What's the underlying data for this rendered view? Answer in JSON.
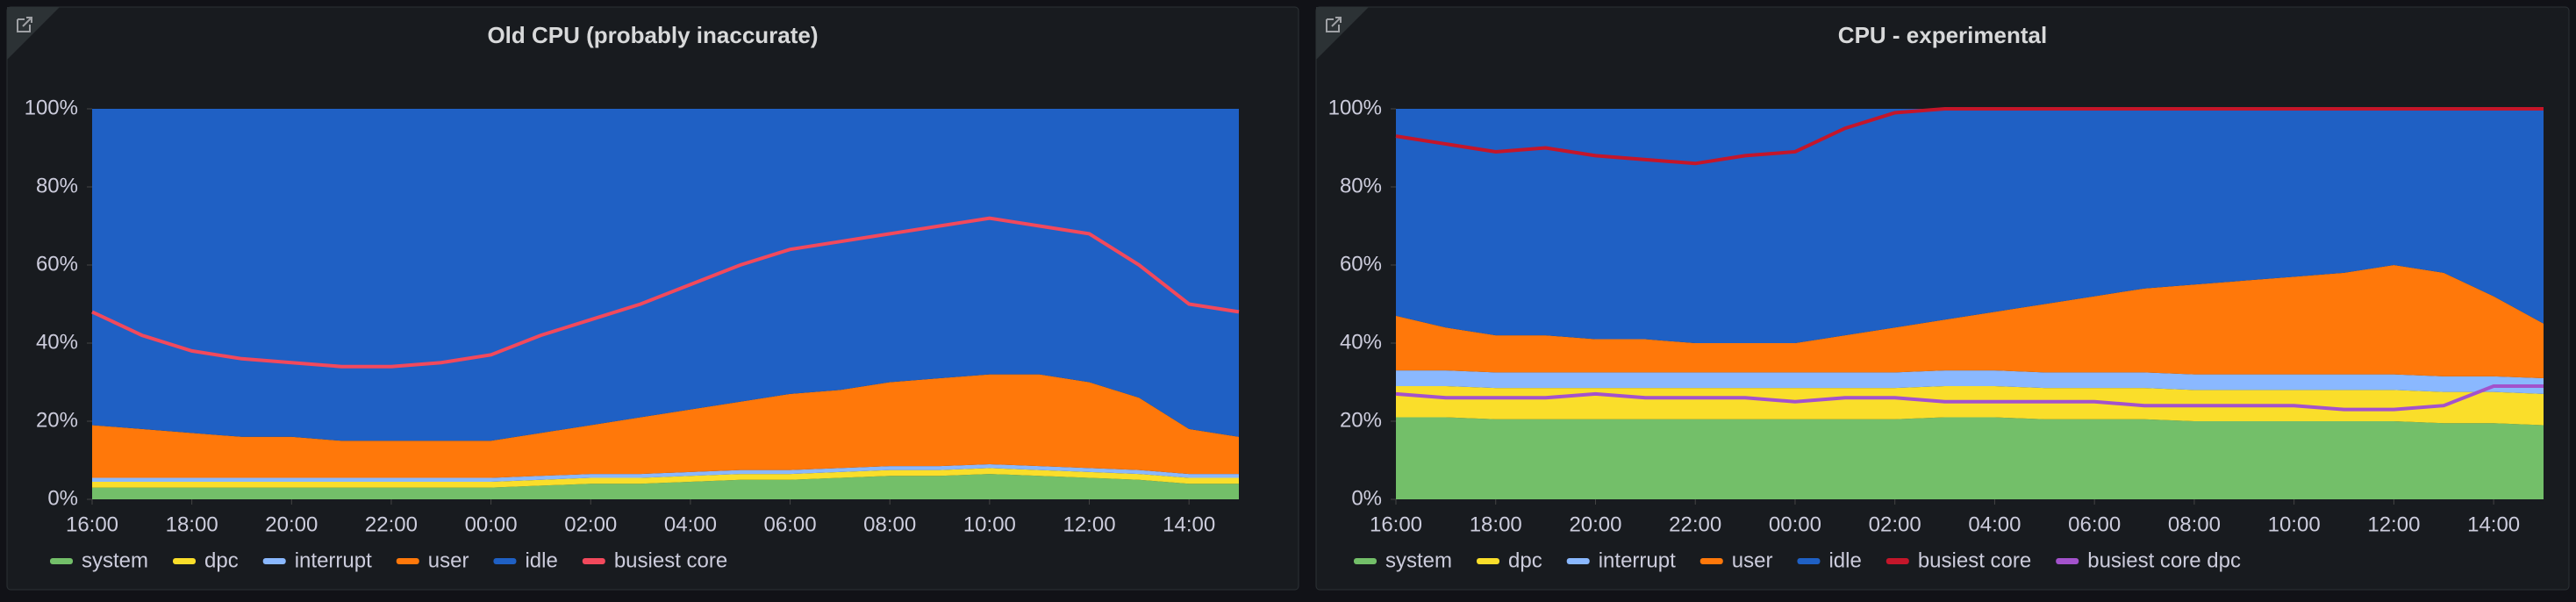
{
  "chart_data": [
    {
      "type": "area",
      "title": "Old CPU (probably inaccurate)",
      "x": [
        "16:00",
        "17:00",
        "18:00",
        "19:00",
        "20:00",
        "21:00",
        "22:00",
        "23:00",
        "00:00",
        "01:00",
        "02:00",
        "03:00",
        "04:00",
        "05:00",
        "06:00",
        "07:00",
        "08:00",
        "09:00",
        "10:00",
        "11:00",
        "12:00",
        "13:00",
        "14:00",
        "15:00"
      ],
      "xticks": [
        "16:00",
        "18:00",
        "20:00",
        "22:00",
        "00:00",
        "02:00",
        "04:00",
        "06:00",
        "08:00",
        "10:00",
        "12:00",
        "14:00"
      ],
      "ylim": [
        0,
        100
      ],
      "yticks": [
        {
          "value": 0,
          "label": "0%"
        },
        {
          "value": 20,
          "label": "20%"
        },
        {
          "value": 40,
          "label": "40%"
        },
        {
          "value": 60,
          "label": "60%"
        },
        {
          "value": 80,
          "label": "80%"
        },
        {
          "value": 100,
          "label": "100%"
        }
      ],
      "series": [
        {
          "name": "system",
          "type": "area",
          "color": "#73bf69",
          "values": [
            3,
            3,
            3,
            3,
            3,
            3,
            3,
            3,
            3,
            3.5,
            4,
            4,
            4.5,
            5,
            5,
            5.5,
            6,
            6,
            6.5,
            6,
            5.5,
            5,
            4,
            4
          ]
        },
        {
          "name": "dpc",
          "type": "area",
          "color": "#fade2a",
          "values": [
            1.5,
            1.5,
            1.5,
            1.5,
            1.5,
            1.5,
            1.5,
            1.5,
            1.5,
            1.5,
            1.5,
            1.5,
            1.5,
            1.5,
            1.5,
            1.5,
            1.5,
            1.5,
            1.5,
            1.5,
            1.5,
            1.5,
            1.5,
            1.5
          ]
        },
        {
          "name": "interrupt",
          "type": "area",
          "color": "#8ab8ff",
          "values": [
            1,
            1,
            1,
            1,
            1,
            1,
            1,
            1,
            1,
            1,
            1,
            1,
            1,
            1,
            1,
            1,
            1,
            1,
            1,
            1,
            1,
            1,
            1,
            1
          ]
        },
        {
          "name": "user",
          "type": "area",
          "color": "#ff780a",
          "values": [
            13.5,
            12.5,
            11.5,
            10.5,
            10.5,
            9.5,
            9.5,
            9.5,
            9.5,
            11,
            12.5,
            14.5,
            16,
            17.5,
            19.5,
            20,
            21.5,
            22.5,
            23,
            23.5,
            22,
            18.5,
            11.5,
            9.5
          ]
        },
        {
          "name": "idle",
          "type": "area",
          "color": "#1f60c4",
          "values": [
            81,
            82,
            83,
            84,
            84,
            85,
            85,
            85,
            85,
            83,
            81,
            79,
            77,
            75,
            73,
            72,
            70,
            69,
            68,
            68,
            70,
            74,
            82,
            84
          ]
        },
        {
          "name": "busiest core",
          "type": "line",
          "color": "#f2495c",
          "values": [
            48,
            42,
            38,
            36,
            35,
            34,
            34,
            35,
            37,
            42,
            46,
            50,
            55,
            60,
            64,
            66,
            68,
            70,
            72,
            70,
            68,
            60,
            50,
            48
          ]
        }
      ]
    },
    {
      "type": "area",
      "title": "CPU - experimental",
      "x": [
        "16:00",
        "17:00",
        "18:00",
        "19:00",
        "20:00",
        "21:00",
        "22:00",
        "23:00",
        "00:00",
        "01:00",
        "02:00",
        "03:00",
        "04:00",
        "05:00",
        "06:00",
        "07:00",
        "08:00",
        "09:00",
        "10:00",
        "11:00",
        "12:00",
        "13:00",
        "14:00",
        "15:00"
      ],
      "xticks": [
        "16:00",
        "18:00",
        "20:00",
        "22:00",
        "00:00",
        "02:00",
        "04:00",
        "06:00",
        "08:00",
        "10:00",
        "12:00",
        "14:00"
      ],
      "ylim": [
        0,
        100
      ],
      "yticks": [
        {
          "value": 0,
          "label": "0%"
        },
        {
          "value": 20,
          "label": "20%"
        },
        {
          "value": 40,
          "label": "40%"
        },
        {
          "value": 60,
          "label": "60%"
        },
        {
          "value": 80,
          "label": "80%"
        },
        {
          "value": 100,
          "label": "100%"
        }
      ],
      "series": [
        {
          "name": "system",
          "type": "area",
          "color": "#73bf69",
          "values": [
            21,
            21,
            20.5,
            20.5,
            20.5,
            20.5,
            20.5,
            20.5,
            20.5,
            20.5,
            20.5,
            21,
            21,
            20.5,
            20.5,
            20.5,
            20,
            20,
            20,
            20,
            20,
            19.5,
            19.5,
            19
          ]
        },
        {
          "name": "dpc",
          "type": "area",
          "color": "#fade2a",
          "values": [
            8,
            8,
            8,
            8,
            8,
            8,
            8,
            8,
            8,
            8,
            8,
            8,
            8,
            8,
            8,
            8,
            8,
            8,
            8,
            8,
            8,
            8,
            8,
            8
          ]
        },
        {
          "name": "interrupt",
          "type": "area",
          "color": "#8ab8ff",
          "values": [
            4,
            4,
            4,
            4,
            4,
            4,
            4,
            4,
            4,
            4,
            4,
            4,
            4,
            4,
            4,
            4,
            4,
            4,
            4,
            4,
            4,
            4,
            4,
            4
          ]
        },
        {
          "name": "user",
          "type": "area",
          "color": "#ff780a",
          "values": [
            14,
            11,
            9.5,
            9.5,
            8.5,
            8.5,
            7.5,
            7.5,
            7.5,
            9.5,
            11.5,
            13,
            15,
            17.5,
            19.5,
            21.5,
            23,
            24,
            25,
            26,
            28,
            26.5,
            20.5,
            14
          ]
        },
        {
          "name": "idle",
          "type": "area",
          "color": "#1f60c4",
          "values": [
            53,
            56,
            58,
            58,
            59,
            59,
            60,
            60,
            60,
            58,
            56,
            54,
            52,
            50,
            48,
            46,
            45,
            44,
            43,
            42,
            40,
            42,
            48,
            55
          ]
        },
        {
          "name": "busiest core",
          "type": "line",
          "color": "#c4162a",
          "values": [
            93,
            91,
            89,
            90,
            88,
            87,
            86,
            88,
            89,
            95,
            99,
            100,
            100,
            100,
            100,
            100,
            100,
            100,
            100,
            100,
            100,
            100,
            100,
            100
          ]
        },
        {
          "name": "busiest core dpc",
          "type": "line",
          "color": "#a352cc",
          "values": [
            27,
            26,
            26,
            26,
            27,
            26,
            26,
            26,
            25,
            26,
            26,
            25,
            25,
            25,
            25,
            24,
            24,
            24,
            24,
            23,
            23,
            24,
            29,
            29
          ]
        }
      ]
    }
  ]
}
